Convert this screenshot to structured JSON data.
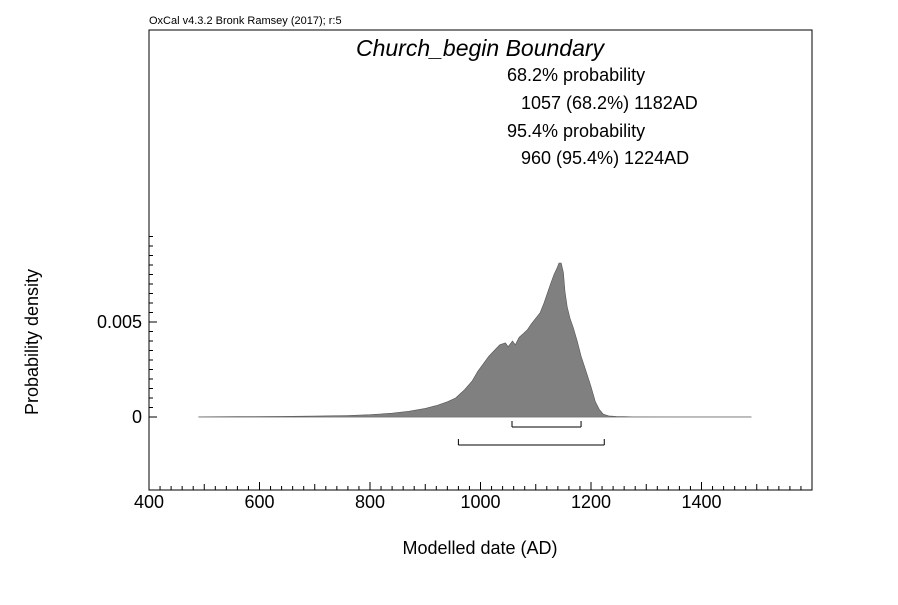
{
  "chart_data": {
    "type": "area",
    "software_credit": "OxCal v4.3.2 Bronk Ramsey (2017); r:5",
    "title": "Church_begin Boundary",
    "xlabel": "Modelled date (AD)",
    "ylabel": "Probability density",
    "xlim": [
      400,
      1600
    ],
    "ylim": [
      0,
      0.0098
    ],
    "x_ticks": [
      400,
      600,
      800,
      1000,
      1200,
      1400
    ],
    "y_ticks": [
      {
        "value": 0,
        "label": "0"
      },
      {
        "value": 0.005,
        "label": "0.005"
      }
    ],
    "fill_color": "#808080",
    "distribution": {
      "x": [
        490,
        560,
        640,
        700,
        760,
        800,
        840,
        870,
        900,
        920,
        940,
        955,
        970,
        985,
        995,
        1005,
        1015,
        1025,
        1035,
        1045,
        1050,
        1058,
        1063,
        1070,
        1078,
        1085,
        1092,
        1100,
        1108,
        1115,
        1122,
        1128,
        1133,
        1138,
        1142,
        1146,
        1150,
        1153,
        1157,
        1162,
        1168,
        1175,
        1182,
        1190,
        1200,
        1208,
        1215,
        1222,
        1232,
        1245,
        1260,
        1275,
        1300,
        1350,
        1400,
        1450,
        1490
      ],
      "y": [
        1e-05,
        2e-05,
        3e-05,
        5e-05,
        8e-05,
        0.00012,
        0.0002,
        0.0003,
        0.00045,
        0.0006,
        0.0008,
        0.001,
        0.0014,
        0.0019,
        0.0024,
        0.0028,
        0.0032,
        0.0035,
        0.0038,
        0.0039,
        0.0037,
        0.004,
        0.0038,
        0.0042,
        0.0044,
        0.0046,
        0.0049,
        0.0052,
        0.0055,
        0.006,
        0.0066,
        0.0071,
        0.0075,
        0.0078,
        0.0081,
        0.0081,
        0.0076,
        0.0066,
        0.0058,
        0.0052,
        0.0047,
        0.004,
        0.0032,
        0.0025,
        0.0016,
        0.0008,
        0.0004,
        0.00015,
        6e-05,
        3e-05,
        2e-05,
        1e-05,
        1e-05,
        5e-06,
        5e-06,
        4e-06,
        3e-06
      ]
    },
    "ranges": [
      {
        "label": "68.2% probability",
        "summary": "1057 (68.2%) 1182AD",
        "from": 1057,
        "to": 1182
      },
      {
        "label": "95.4% probability",
        "summary": "960 (95.4%) 1224AD",
        "from": 960,
        "to": 1224
      }
    ],
    "grid": false
  }
}
